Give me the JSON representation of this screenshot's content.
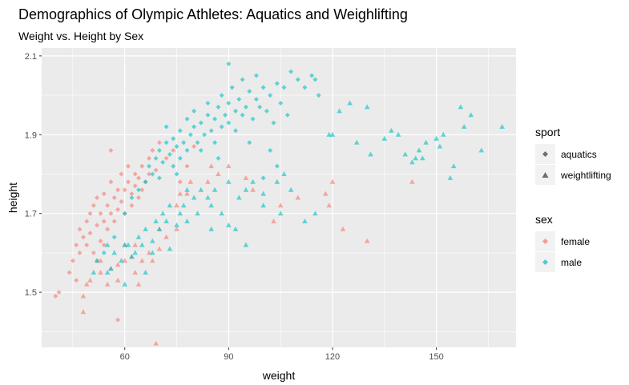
{
  "chart_data": {
    "type": "scatter",
    "title": "Demographics of Olympic Athletes: Aquatics and Weighlifting",
    "subtitle": "Weight vs. Height by Sex",
    "xlabel": "weight",
    "ylabel": "height",
    "xlim": [
      36,
      173
    ],
    "ylim": [
      1.36,
      2.12
    ],
    "x_ticks": [
      60,
      90,
      120,
      150
    ],
    "x_tick_labels": [
      "60",
      "90",
      "120",
      "150"
    ],
    "y_ticks": [
      1.5,
      1.7,
      1.9,
      2.1
    ],
    "y_tick_labels": [
      "1.5",
      "1.7",
      "1.9",
      "2.1"
    ],
    "grid": true,
    "legend_placement": "right",
    "legends": [
      {
        "title": "sport",
        "entries": [
          "aquatics",
          "weightlifting"
        ],
        "shapes": [
          "diamond",
          "triangle"
        ]
      },
      {
        "title": "sex",
        "entries": [
          "female",
          "male"
        ],
        "colors": [
          "#F8766D",
          "#00BFC4"
        ]
      }
    ],
    "series": [
      {
        "name": "female / aquatics",
        "sex": "female",
        "sport": "aquatics",
        "color": "#F8766D",
        "shape": "diamond",
        "points": [
          [
            40,
            1.49
          ],
          [
            41,
            1.5
          ],
          [
            44,
            1.55
          ],
          [
            45,
            1.58
          ],
          [
            46,
            1.62
          ],
          [
            47,
            1.66
          ],
          [
            47,
            1.6
          ],
          [
            48,
            1.64
          ],
          [
            49,
            1.68
          ],
          [
            49,
            1.62
          ],
          [
            50,
            1.7
          ],
          [
            50,
            1.65
          ],
          [
            51,
            1.72
          ],
          [
            51,
            1.6
          ],
          [
            52,
            1.67
          ],
          [
            52,
            1.74
          ],
          [
            53,
            1.63
          ],
          [
            53,
            1.7
          ],
          [
            54,
            1.68
          ],
          [
            54,
            1.75
          ],
          [
            55,
            1.72
          ],
          [
            55,
            1.66
          ],
          [
            56,
            1.7
          ],
          [
            56,
            1.78
          ],
          [
            56,
            1.86
          ],
          [
            57,
            1.74
          ],
          [
            57,
            1.68
          ],
          [
            58,
            1.76
          ],
          [
            58,
            1.71
          ],
          [
            59,
            1.73
          ],
          [
            59,
            1.8
          ],
          [
            60,
            1.76
          ],
          [
            60,
            1.7
          ],
          [
            61,
            1.78
          ],
          [
            61,
            1.82
          ],
          [
            62,
            1.75
          ],
          [
            62,
            1.72
          ],
          [
            63,
            1.8
          ],
          [
            63,
            1.77
          ],
          [
            64,
            1.79
          ],
          [
            64,
            1.74
          ],
          [
            65,
            1.82
          ],
          [
            65,
            1.76
          ],
          [
            66,
            1.78
          ],
          [
            67,
            1.84
          ],
          [
            67,
            1.8
          ],
          [
            68,
            1.86
          ],
          [
            69,
            1.81
          ],
          [
            70,
            1.88
          ],
          [
            72,
            1.84
          ],
          [
            74,
            1.86
          ],
          [
            76,
            1.78
          ],
          [
            78,
            1.82
          ],
          [
            80,
            1.87
          ],
          [
            58,
            1.43
          ],
          [
            46,
            1.53
          ],
          [
            52,
            1.58
          ],
          [
            54,
            1.62
          ]
        ]
      },
      {
        "name": "male / aquatics",
        "sex": "male",
        "sport": "aquatics",
        "color": "#00BFC4",
        "shape": "diamond",
        "points": [
          [
            54,
            1.6
          ],
          [
            57,
            1.64
          ],
          [
            60,
            1.7
          ],
          [
            62,
            1.74
          ],
          [
            64,
            1.76
          ],
          [
            66,
            1.78
          ],
          [
            67,
            1.82
          ],
          [
            68,
            1.8
          ],
          [
            69,
            1.84
          ],
          [
            70,
            1.86
          ],
          [
            71,
            1.83
          ],
          [
            72,
            1.88
          ],
          [
            72,
            1.92
          ],
          [
            73,
            1.85
          ],
          [
            74,
            1.89
          ],
          [
            74,
            1.82
          ],
          [
            75,
            1.87
          ],
          [
            76,
            1.91
          ],
          [
            76,
            1.84
          ],
          [
            77,
            1.88
          ],
          [
            78,
            1.94
          ],
          [
            78,
            1.86
          ],
          [
            79,
            1.9
          ],
          [
            80,
            1.92
          ],
          [
            80,
            1.96
          ],
          [
            81,
            1.88
          ],
          [
            82,
            1.93
          ],
          [
            82,
            1.86
          ],
          [
            83,
            1.9
          ],
          [
            84,
            1.95
          ],
          [
            84,
            1.98
          ],
          [
            85,
            1.91
          ],
          [
            86,
            1.94
          ],
          [
            86,
            1.88
          ],
          [
            87,
            1.97
          ],
          [
            88,
            1.92
          ],
          [
            88,
            2.0
          ],
          [
            89,
            1.95
          ],
          [
            90,
            1.93
          ],
          [
            90,
            1.98
          ],
          [
            91,
            2.02
          ],
          [
            92,
            1.96
          ],
          [
            92,
            1.91
          ],
          [
            93,
            1.99
          ],
          [
            94,
            1.95
          ],
          [
            94,
            2.04
          ],
          [
            95,
            1.97
          ],
          [
            96,
            2.01
          ],
          [
            97,
            1.94
          ],
          [
            98,
            1.99
          ],
          [
            98,
            2.05
          ],
          [
            99,
            1.97
          ],
          [
            100,
            2.02
          ],
          [
            101,
            1.96
          ],
          [
            102,
            2.0
          ],
          [
            103,
            1.93
          ],
          [
            104,
            2.03
          ],
          [
            105,
            1.98
          ],
          [
            106,
            2.02
          ],
          [
            107,
            1.95
          ],
          [
            108,
            2.06
          ],
          [
            110,
            2.04
          ],
          [
            112,
            2.02
          ],
          [
            114,
            2.05
          ],
          [
            115,
            2.04
          ],
          [
            116,
            2.0
          ],
          [
            104,
            1.82
          ],
          [
            102,
            1.86
          ],
          [
            100,
            1.79
          ],
          [
            96,
            1.88
          ],
          [
            90,
            2.08
          ],
          [
            87,
            1.84
          ],
          [
            75,
            1.8
          ],
          [
            70,
            1.79
          ]
        ]
      },
      {
        "name": "female / weightlifting",
        "sex": "female",
        "sport": "weightlifting",
        "color": "#F8766D",
        "shape": "triangle",
        "points": [
          [
            48,
            1.45
          ],
          [
            48,
            1.49
          ],
          [
            49,
            1.52
          ],
          [
            50,
            1.53
          ],
          [
            53,
            1.55
          ],
          [
            53,
            1.58
          ],
          [
            55,
            1.52
          ],
          [
            56,
            1.56
          ],
          [
            58,
            1.53
          ],
          [
            58,
            1.57
          ],
          [
            60,
            1.58
          ],
          [
            60,
            1.62
          ],
          [
            62,
            1.59
          ],
          [
            63,
            1.62
          ],
          [
            63,
            1.55
          ],
          [
            64,
            1.52
          ],
          [
            65,
            1.58
          ],
          [
            67,
            1.6
          ],
          [
            68,
            1.58
          ],
          [
            69,
            1.37
          ],
          [
            70,
            1.61
          ],
          [
            70,
            1.66
          ],
          [
            72,
            1.64
          ],
          [
            75,
            1.66
          ],
          [
            75,
            1.72
          ],
          [
            76,
            1.75
          ],
          [
            78,
            1.75
          ],
          [
            79,
            1.78
          ],
          [
            84,
            1.78
          ],
          [
            85,
            1.82
          ],
          [
            87,
            1.8
          ],
          [
            90,
            1.82
          ],
          [
            95,
            1.79
          ],
          [
            97,
            1.76
          ],
          [
            103,
            1.68
          ],
          [
            105,
            1.72
          ],
          [
            110,
            1.74
          ],
          [
            118,
            1.75
          ],
          [
            119,
            1.72
          ],
          [
            120,
            1.78
          ],
          [
            123,
            1.66
          ],
          [
            130,
            1.63
          ],
          [
            143,
            1.78
          ]
        ]
      },
      {
        "name": "male / weightlifting",
        "sex": "male",
        "sport": "weightlifting",
        "color": "#00BFC4",
        "shape": "triangle",
        "points": [
          [
            51,
            1.55
          ],
          [
            52,
            1.58
          ],
          [
            55,
            1.55
          ],
          [
            55,
            1.62
          ],
          [
            56,
            1.56
          ],
          [
            57,
            1.6
          ],
          [
            59,
            1.58
          ],
          [
            60,
            1.62
          ],
          [
            61,
            1.62
          ],
          [
            62,
            1.59
          ],
          [
            63,
            1.6
          ],
          [
            64,
            1.64
          ],
          [
            65,
            1.62
          ],
          [
            66,
            1.66
          ],
          [
            68,
            1.6
          ],
          [
            68,
            1.63
          ],
          [
            69,
            1.68
          ],
          [
            70,
            1.66
          ],
          [
            71,
            1.7
          ],
          [
            72,
            1.68
          ],
          [
            73,
            1.72
          ],
          [
            75,
            1.67
          ],
          [
            76,
            1.7
          ],
          [
            77,
            1.72
          ],
          [
            78,
            1.68
          ],
          [
            78,
            1.76
          ],
          [
            80,
            1.74
          ],
          [
            81,
            1.7
          ],
          [
            82,
            1.76
          ],
          [
            84,
            1.74
          ],
          [
            85,
            1.72
          ],
          [
            86,
            1.76
          ],
          [
            88,
            1.7
          ],
          [
            90,
            1.67
          ],
          [
            90,
            1.78
          ],
          [
            92,
            1.66
          ],
          [
            93,
            1.74
          ],
          [
            95,
            1.76
          ],
          [
            97,
            1.78
          ],
          [
            100,
            1.75
          ],
          [
            100,
            1.72
          ],
          [
            104,
            1.78
          ],
          [
            105,
            1.7
          ],
          [
            106,
            1.8
          ],
          [
            108,
            1.76
          ],
          [
            112,
            1.68
          ],
          [
            115,
            1.7
          ],
          [
            119,
            1.9
          ],
          [
            120,
            1.9
          ],
          [
            122,
            1.96
          ],
          [
            125,
            1.98
          ],
          [
            127,
            1.88
          ],
          [
            130,
            1.97
          ],
          [
            131,
            1.85
          ],
          [
            135,
            1.89
          ],
          [
            137,
            1.91
          ],
          [
            139,
            1.9
          ],
          [
            141,
            1.85
          ],
          [
            143,
            1.83
          ],
          [
            144,
            1.84
          ],
          [
            145,
            1.86
          ],
          [
            146,
            1.84
          ],
          [
            147,
            1.88
          ],
          [
            150,
            1.89
          ],
          [
            151,
            1.87
          ],
          [
            152,
            1.9
          ],
          [
            154,
            1.79
          ],
          [
            155,
            1.82
          ],
          [
            157,
            1.97
          ],
          [
            158,
            1.92
          ],
          [
            160,
            1.95
          ],
          [
            163,
            1.86
          ],
          [
            169,
            1.92
          ],
          [
            73,
            1.61
          ],
          [
            66,
            1.55
          ],
          [
            60,
            1.52
          ],
          [
            85,
            1.66
          ],
          [
            95,
            1.62
          ]
        ]
      }
    ]
  }
}
